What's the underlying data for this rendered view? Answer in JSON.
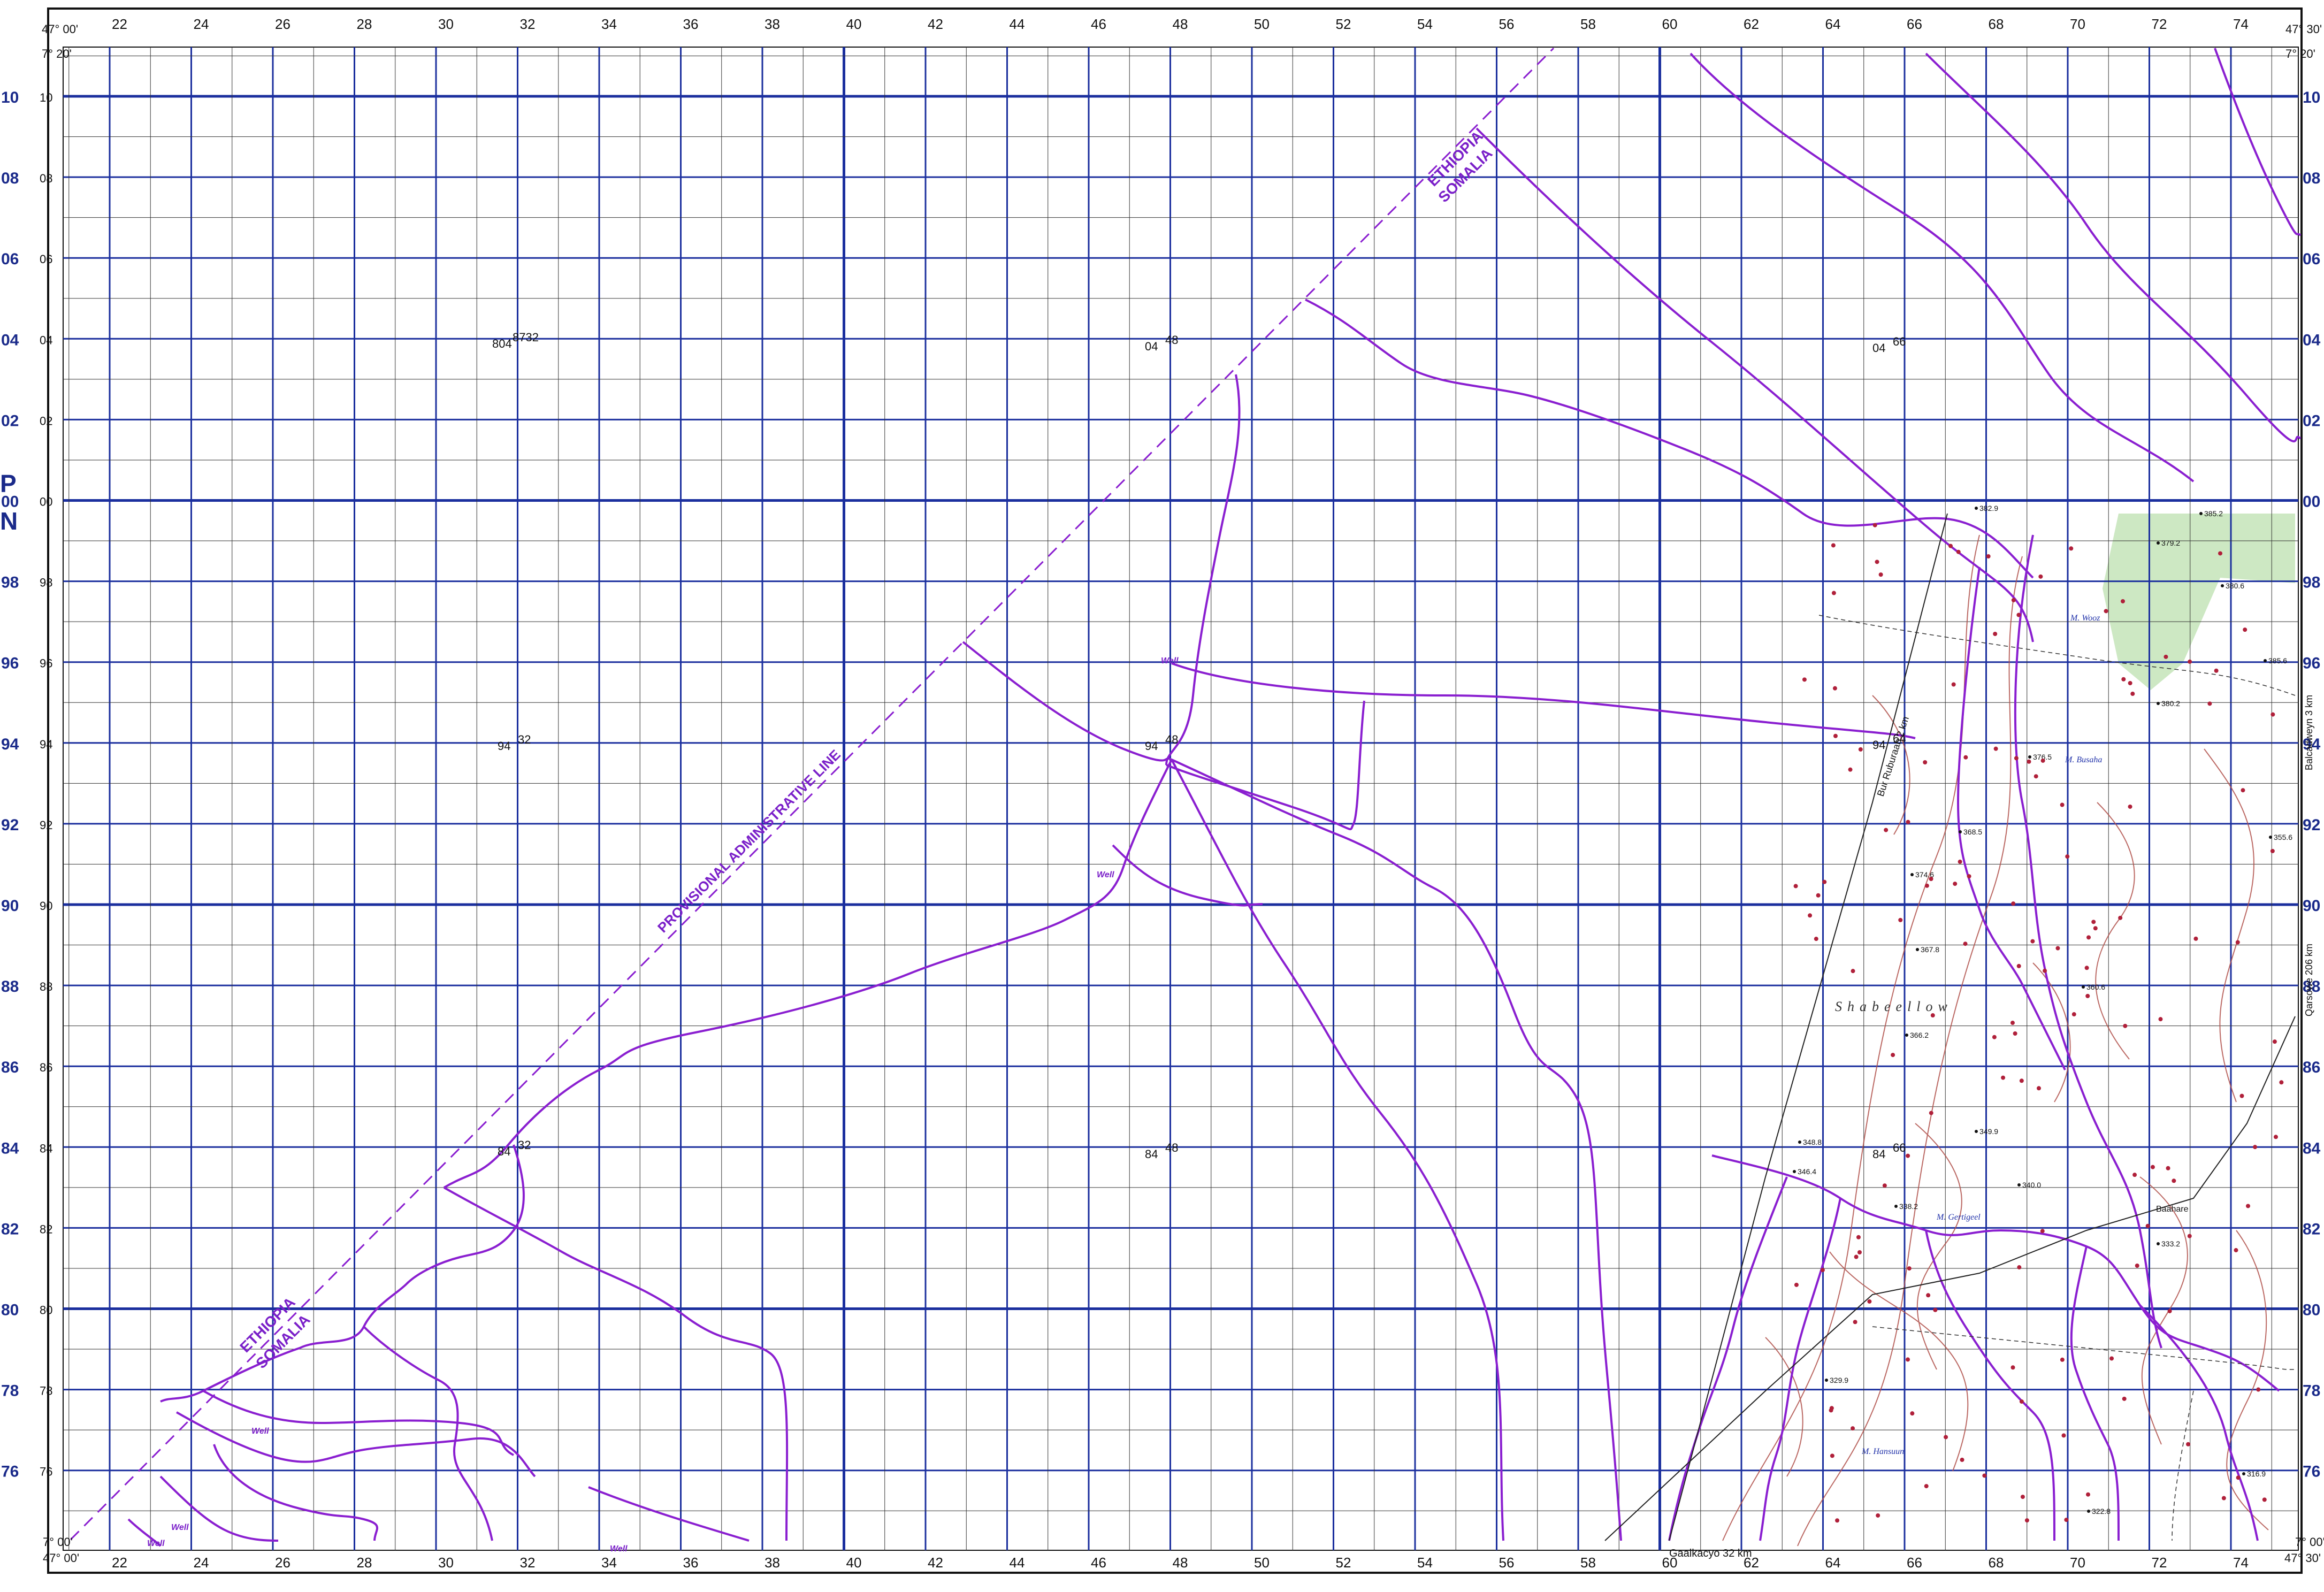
{
  "map": {
    "boundary_label_top": "ETHIOPIA",
    "boundary_label_bottom": "SOMALIA",
    "provisional_line_label": "PROVISIONAL ADMINISTRATIVE LINE",
    "region_name": "Shabeellow",
    "well_label": "Well",
    "grid_zone_letter": "P",
    "north_letter": "N",
    "corner_top_left": "47° 00'",
    "corner_top_left_lat": "7° 20'",
    "corner_top_right": "47° 30'",
    "corner_top_right_lat": "7° 20'",
    "corner_bottom_left": "47° 00'",
    "corner_bottom_left_lat": "7° 00'",
    "corner_bottom_right": "47° 30'",
    "corner_bottom_right_lat": "7° 00'",
    "road_bottom": "Gaalkacyo 32 km",
    "road_left": "Bur Ruburaab 2 km",
    "road_right_top": "Balcadweyn 3 km",
    "road_right_mid": "Qarsowe 206 km",
    "places": [
      "M. Busaha",
      "M. Gertigeel",
      "M. Hansuun",
      "Baahare",
      "M. Wooz"
    ],
    "northing_labels": [
      "10",
      "08",
      "06",
      "04",
      "02",
      "00",
      "98",
      "96",
      "94",
      "92",
      "90",
      "88",
      "86",
      "84",
      "82",
      "80",
      "78",
      "76"
    ],
    "easting_labels": [
      "22",
      "24",
      "26",
      "28",
      "30",
      "32",
      "34",
      "36",
      "38",
      "40",
      "42",
      "44",
      "46",
      "48",
      "50",
      "52",
      "54",
      "56",
      "58",
      "60",
      "62",
      "64",
      "66",
      "68",
      "70",
      "72",
      "74"
    ],
    "interior_labels": [
      {
        "a": "804",
        "b": "8732"
      },
      {
        "a": "04",
        "b": "48"
      },
      {
        "a": "04",
        "b": "66"
      },
      {
        "a": "94",
        "b": "32"
      },
      {
        "a": "94",
        "b": "48"
      },
      {
        "a": "94",
        "b": "64"
      },
      {
        "a": "84",
        "b": "32"
      },
      {
        "a": "84",
        "b": "48"
      },
      {
        "a": "84",
        "b": "66"
      }
    ],
    "spot_heights": [
      "382.9",
      "385.2",
      "379.2",
      "380.6",
      "385.6",
      "380.2",
      "376.5",
      "374.6",
      "368.5",
      "367.8",
      "366.2",
      "360.6",
      "355.6",
      "349.9",
      "348.8",
      "346.4",
      "340.0",
      "338.2",
      "333.2",
      "329.9",
      "322.8",
      "316.9"
    ],
    "colors": {
      "grid": "#1b2f9e",
      "track": "#8a1fd0",
      "contour": "#b0504a",
      "vegetation": "#cde8c3",
      "frame": "#111111"
    }
  }
}
